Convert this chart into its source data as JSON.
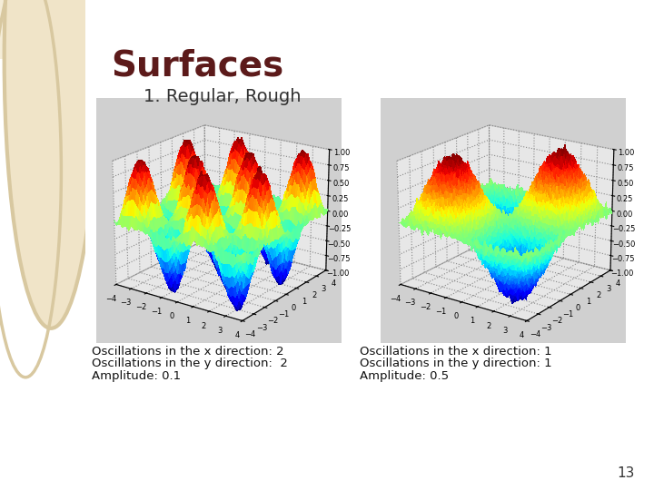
{
  "title": "Surfaces",
  "subtitle": "1. Regular, Rough",
  "title_color": "#5C1A1A",
  "subtitle_color": "#333333",
  "background_color": "#FFFFFF",
  "left_panel_color": "#E8D8B8",
  "plot_bg_color": "#D0D0D0",
  "pane_color": "#E8E8E8",
  "caption1_line1": "Oscillations in the x direction: 2",
  "caption1_line2": "Oscillations in the y direction:  2",
  "caption1_line3": "Amplitude: 0.1",
  "caption2_line1": "Oscillations in the x direction: 1",
  "caption2_line2": "Oscillations in the y direction: 1",
  "caption2_line3": "Amplitude: 0.5",
  "surface1": {
    "nx": 2,
    "ny": 2,
    "xrange": [
      -4,
      4
    ],
    "yrange": [
      -4,
      4
    ],
    "noise_scale": 0.03,
    "npts": 60
  },
  "surface2": {
    "nx": 1,
    "ny": 1,
    "xrange": [
      -4,
      4
    ],
    "yrange": [
      -4,
      4
    ],
    "noise_scale": 0.04,
    "npts": 80
  },
  "page_number": "13"
}
